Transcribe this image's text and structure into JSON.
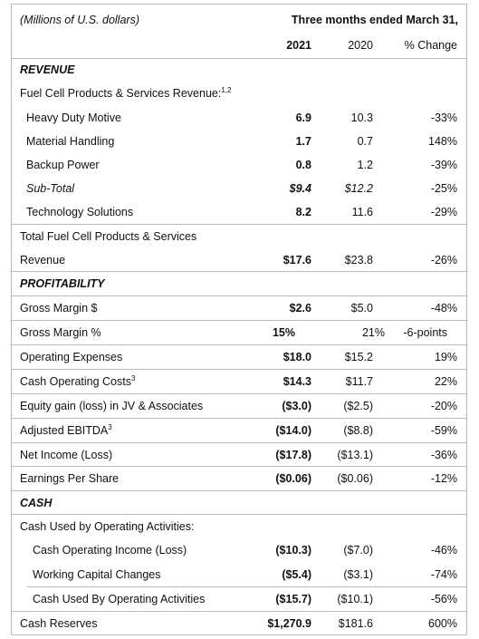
{
  "header": {
    "units": "(Millions of U.S. dollars)",
    "period": "Three months ended March 31,",
    "columns": [
      "2021",
      "2020",
      "% Change"
    ]
  },
  "rows": [
    {
      "label": "REVENUE"
    },
    {
      "label": "Fuel Cell Products & Services Revenue:",
      "note": "1,2"
    },
    {
      "label": "Heavy Duty Motive",
      "values": [
        "6.9",
        "10.3",
        "-33%"
      ]
    },
    {
      "label": "Material Handling",
      "values": [
        "1.7",
        "0.7",
        "148%"
      ]
    },
    {
      "label": "Backup Power",
      "values": [
        "0.8",
        "1.2",
        "-39%"
      ]
    },
    {
      "label": "Sub-Total",
      "values": [
        "$9.4",
        "$12.2",
        "-25%"
      ]
    },
    {
      "label": "Technology Solutions",
      "values": [
        "8.2",
        "11.6",
        "-29%"
      ]
    },
    {
      "label": "Total Fuel Cell Products & Services"
    },
    {
      "label": "Revenue",
      "values": [
        "$17.6",
        "$23.8",
        "-26%"
      ]
    },
    {
      "label": "PROFITABILITY"
    },
    {
      "label": "Gross Margin $",
      "values": [
        "$2.6",
        "$5.0",
        "-48%"
      ]
    },
    {
      "label": "Gross Margin %",
      "values": [
        "15%",
        "21%",
        "-6-points"
      ]
    },
    {
      "label": "Operating Expenses",
      "values": [
        "$18.0",
        "$15.2",
        "19%"
      ]
    },
    {
      "label": "Cash Operating Costs",
      "note": "3",
      "values": [
        "$14.3",
        "$11.7",
        "22%"
      ]
    },
    {
      "label": "Equity gain (loss) in JV & Associates",
      "values": [
        "($3.0)",
        "($2.5)",
        "-20%"
      ]
    },
    {
      "label": "Adjusted EBITDA",
      "note": "3",
      "values": [
        "($14.0)",
        "($8.8)",
        "-59%"
      ]
    },
    {
      "label": "Net Income (Loss)",
      "values": [
        "($17.8)",
        "($13.1)",
        "-36%"
      ]
    },
    {
      "label": "Earnings Per Share",
      "values": [
        "($0.06)",
        "($0.06)",
        "-12%"
      ]
    },
    {
      "label": "CASH"
    },
    {
      "label": "Cash Used by Operating Activities:"
    },
    {
      "label": "Cash Operating Income (Loss)",
      "values": [
        "($10.3)",
        "($7.0)",
        "-46%"
      ]
    },
    {
      "label": "Working Capital Changes",
      "values": [
        "($5.4)",
        "($3.1)",
        "-74%"
      ]
    },
    {
      "label": "Cash Used By Operating Activities",
      "values": [
        "($15.7)",
        "($10.1)",
        "-56%"
      ]
    },
    {
      "label": "Cash Reserves",
      "values": [
        "$1,270.9",
        "$181.6",
        "600%"
      ]
    }
  ]
}
